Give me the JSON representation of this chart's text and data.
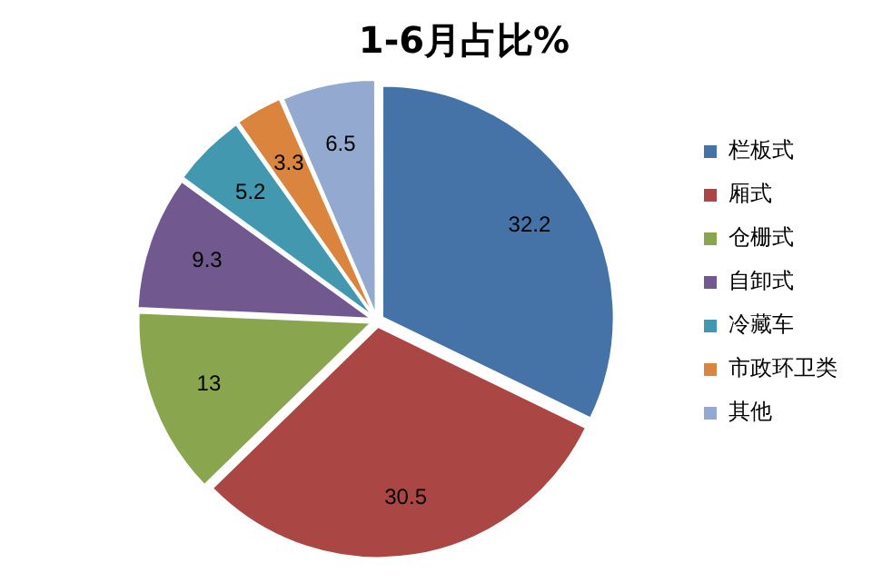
{
  "chart_data": {
    "type": "pie",
    "title": "1-6月占比%",
    "categories": [
      "栏板式",
      "厢式",
      "仓栅式",
      "自卸式",
      "冷藏车",
      "市政环卫类",
      "其他"
    ],
    "values": [
      32.2,
      30.5,
      13,
      9.3,
      5.2,
      3.3,
      6.5
    ],
    "colors": [
      "#4572a7",
      "#aa4643",
      "#89a54e",
      "#71588f",
      "#4198af",
      "#db843d",
      "#93a9cf"
    ],
    "data_labels": true,
    "legend": "right"
  }
}
